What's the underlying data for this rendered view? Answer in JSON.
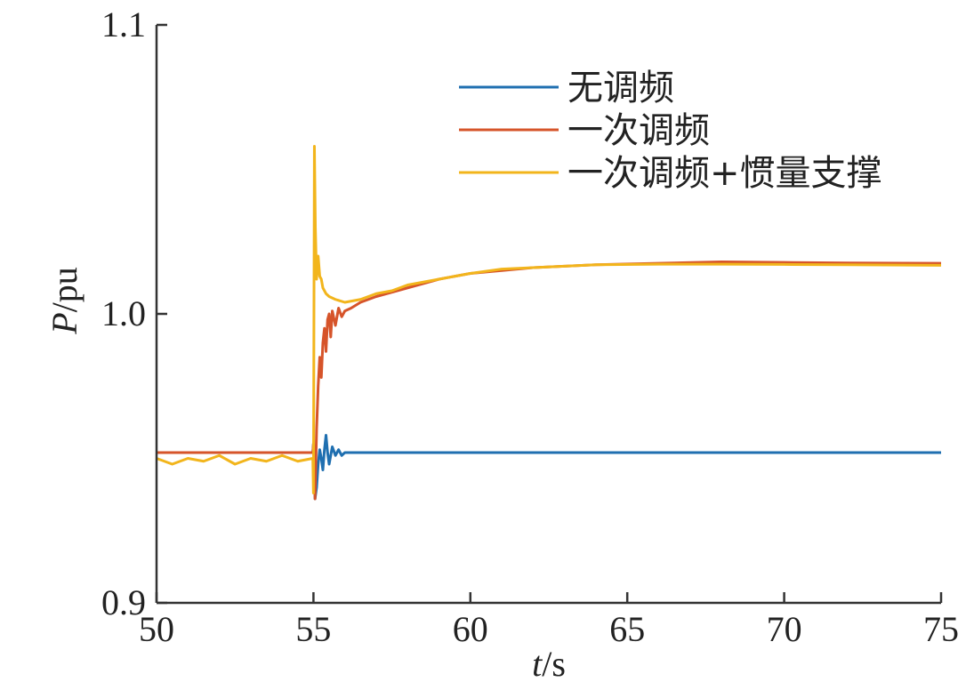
{
  "chart_data": {
    "type": "line",
    "xlabel": {
      "italic": "t",
      "rest": "/s"
    },
    "ylabel": {
      "italic": "P",
      "rest": "/pu"
    },
    "xlim": [
      50,
      75
    ],
    "ylim": [
      0.9,
      1.1
    ],
    "xticks": [
      50,
      55,
      60,
      65,
      70,
      75
    ],
    "xtick_labels": [
      "50",
      "55",
      "60",
      "65",
      "70",
      "75"
    ],
    "yticks": [
      0.9,
      1.0,
      1.1
    ],
    "ytick_labels": [
      "0.9",
      "1.0",
      "1.1"
    ],
    "grid": false,
    "legend_position": "top-right",
    "series": [
      {
        "name": "无调频",
        "color": "#1f6fb0",
        "x": [
          50,
          54.98,
          55.0,
          55.05,
          55.1,
          55.15,
          55.2,
          55.25,
          55.3,
          55.35,
          55.4,
          55.45,
          55.5,
          55.55,
          55.6,
          55.7,
          55.8,
          55.9,
          56.0,
          56.2,
          56.5,
          60,
          65,
          70,
          75
        ],
        "y": [
          0.952,
          0.952,
          0.955,
          0.936,
          0.94,
          0.948,
          0.953,
          0.95,
          0.946,
          0.953,
          0.958,
          0.952,
          0.948,
          0.951,
          0.954,
          0.951,
          0.953,
          0.951,
          0.952,
          0.952,
          0.952,
          0.952,
          0.952,
          0.952,
          0.952
        ]
      },
      {
        "name": "一次调频",
        "color": "#d6542a",
        "x": [
          50,
          54.98,
          55.0,
          55.05,
          55.1,
          55.15,
          55.2,
          55.25,
          55.3,
          55.35,
          55.4,
          55.45,
          55.5,
          55.55,
          55.6,
          55.7,
          55.8,
          55.9,
          56.0,
          56.2,
          56.5,
          57.0,
          58.0,
          59.0,
          60.0,
          61.0,
          62.0,
          63.0,
          64.0,
          66.0,
          68.0,
          70.0,
          72.0,
          75.0
        ],
        "y": [
          0.952,
          0.952,
          0.955,
          0.936,
          0.96,
          0.975,
          0.985,
          0.978,
          0.99,
          0.995,
          0.987,
          0.998,
          1.0,
          0.992,
          1.001,
          0.996,
          1.002,
          0.999,
          1.001,
          1.002,
          1.004,
          1.006,
          1.009,
          1.012,
          1.014,
          1.015,
          1.016,
          1.0165,
          1.017,
          1.0175,
          1.018,
          1.0178,
          1.0176,
          1.0175
        ]
      },
      {
        "name": "一次调频+惯量支撑",
        "color": "#f2b51c",
        "x": [
          50,
          50.5,
          51,
          51.5,
          52,
          52.5,
          53,
          53.5,
          54,
          54.5,
          54.98,
          55.0,
          55.03,
          55.06,
          55.1,
          55.15,
          55.2,
          55.25,
          55.3,
          55.4,
          55.5,
          55.7,
          56.0,
          56.5,
          57.0,
          57.5,
          58.0,
          59.0,
          60.0,
          61.0,
          62.0,
          63.0,
          64.0,
          66.0,
          68.0,
          70.0,
          72.0,
          75.0
        ],
        "y": [
          0.95,
          0.948,
          0.95,
          0.949,
          0.951,
          0.948,
          0.95,
          0.949,
          0.951,
          0.949,
          0.95,
          0.938,
          1.058,
          1.03,
          1.012,
          1.02,
          1.013,
          1.012,
          1.009,
          1.007,
          1.006,
          1.005,
          1.004,
          1.005,
          1.007,
          1.008,
          1.01,
          1.012,
          1.014,
          1.0155,
          1.016,
          1.0165,
          1.017,
          1.0172,
          1.0172,
          1.0171,
          1.017,
          1.0168
        ]
      }
    ]
  }
}
